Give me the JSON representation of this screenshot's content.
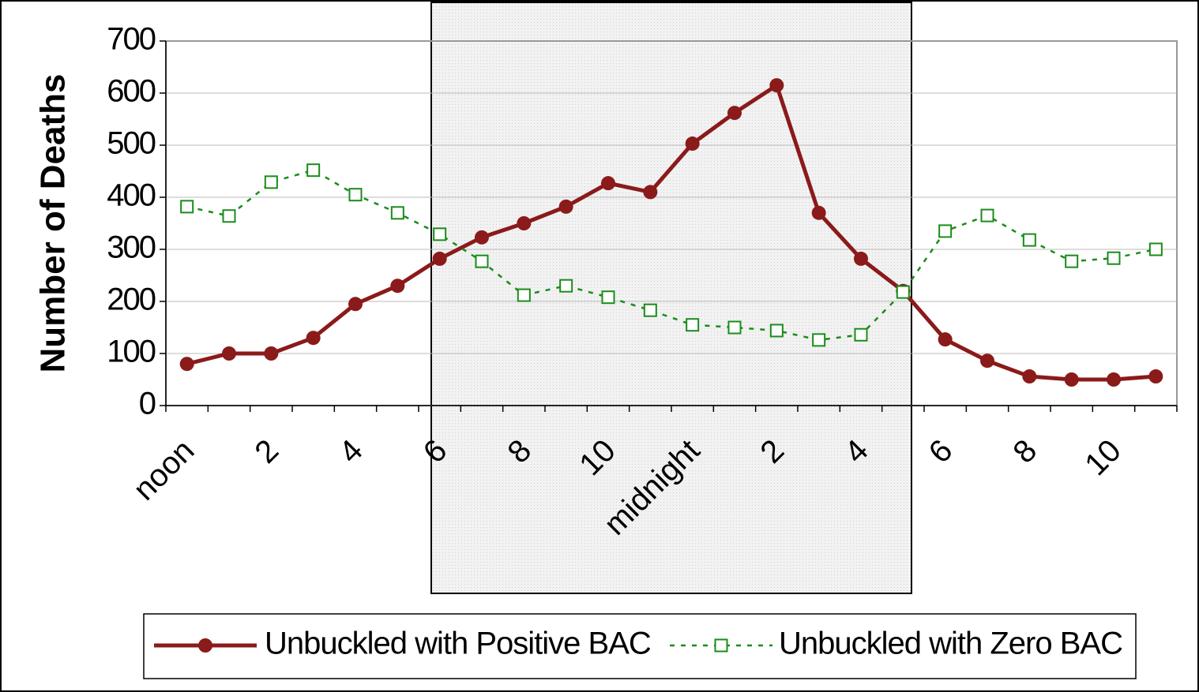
{
  "chart_data": {
    "type": "line",
    "y_label": "Number of Deaths",
    "categories": [
      "noon",
      null,
      "2",
      null,
      "4",
      null,
      "6",
      null,
      "8",
      null,
      "10",
      null,
      "midnight",
      null,
      "2",
      null,
      "4",
      null,
      "6",
      null,
      "8",
      null,
      "10",
      null
    ],
    "series": [
      {
        "name": "Unbuckled with Positive BAC",
        "color": "#8b1a1a",
        "values": [
          80,
          100,
          100,
          130,
          195,
          230,
          282,
          323,
          350,
          382,
          427,
          410,
          503,
          562,
          615,
          370,
          282,
          220,
          127,
          86,
          56,
          50,
          50,
          56
        ]
      },
      {
        "name": "Unbuckled with Zero BAC",
        "color": "#1a8c1a",
        "values": [
          382,
          364,
          429,
          452,
          405,
          370,
          329,
          277,
          212,
          230,
          208,
          183,
          155,
          150,
          144,
          126,
          136,
          218,
          335,
          365,
          318,
          277,
          283,
          300
        ]
      }
    ],
    "ylim": [
      0,
      700
    ],
    "yticks": [
      0,
      100,
      200,
      300,
      400,
      500,
      600,
      700
    ],
    "grid": true
  }
}
